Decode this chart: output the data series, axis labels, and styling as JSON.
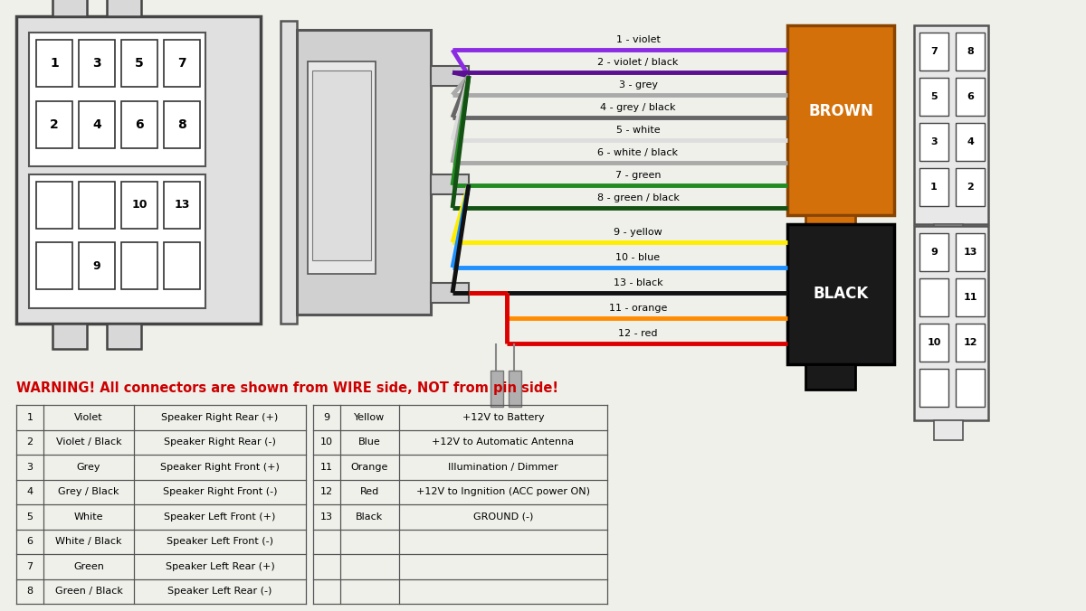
{
  "bg_color": "#f0f0eb",
  "warning_text": "WARNING! All connectors are shown from WIRE side, NOT from pin side!",
  "warning_color": "#cc0000",
  "wires_upper": [
    {
      "num": 1,
      "label": "1 - violet",
      "color": "#8B2BE2"
    },
    {
      "num": 2,
      "label": "2 - violet / black",
      "color": "#5a1090"
    },
    {
      "num": 3,
      "label": "3 - grey",
      "color": "#aaaaaa"
    },
    {
      "num": 4,
      "label": "4 - grey / black",
      "color": "#666666"
    },
    {
      "num": 5,
      "label": "5 - white",
      "color": "#dddddd"
    },
    {
      "num": 6,
      "label": "6 - white / black",
      "color": "#aaaaaa"
    },
    {
      "num": 7,
      "label": "7 - green",
      "color": "#228B22"
    },
    {
      "num": 8,
      "label": "8 - green / black",
      "color": "#145214"
    }
  ],
  "wires_lower": [
    {
      "num": 9,
      "label": "9 - yellow",
      "color": "#ffee00"
    },
    {
      "num": 10,
      "label": "10 - blue",
      "color": "#1e90ff"
    },
    {
      "num": 13,
      "label": "13 - black",
      "color": "#111111"
    },
    {
      "num": 11,
      "label": "11 - orange",
      "color": "#ff8c00"
    },
    {
      "num": 12,
      "label": "12 - red",
      "color": "#dd0000"
    }
  ],
  "table_rows_left": [
    [
      "1",
      "Violet",
      "Speaker Right Rear (+)"
    ],
    [
      "2",
      "Violet / Black",
      "Speaker Right Rear (-)"
    ],
    [
      "3",
      "Grey",
      "Speaker Right Front (+)"
    ],
    [
      "4",
      "Grey / Black",
      "Speaker Right Front (-)"
    ],
    [
      "5",
      "White",
      "Speaker Left Front (+)"
    ],
    [
      "6",
      "White / Black",
      "Speaker Left Front (-)"
    ],
    [
      "7",
      "Green",
      "Speaker Left Rear (+)"
    ],
    [
      "8",
      "Green / Black",
      "Speaker Left Rear (-)"
    ]
  ],
  "table_rows_right": [
    [
      "9",
      "Yellow",
      "+12V to Battery"
    ],
    [
      "10",
      "Blue",
      "+12V to Automatic Antenna"
    ],
    [
      "11",
      "Orange",
      "Illumination / Dimmer"
    ],
    [
      "12",
      "Red",
      "+12V to Ingnition (ACC power ON)"
    ],
    [
      "13",
      "Black",
      "GROUND (-)"
    ]
  ],
  "brown_label": "BROWN",
  "black_label": "BLACK",
  "brown_color": "#d4700a",
  "black_color": "#1a1a1a",
  "fig_w": 12.0,
  "fig_h": 6.76,
  "dpi": 100
}
